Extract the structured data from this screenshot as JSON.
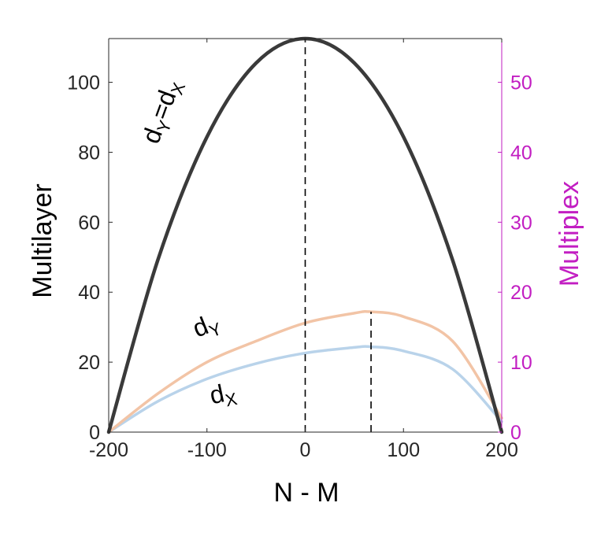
{
  "chart_data": {
    "type": "line",
    "xlabel": "N - M",
    "ylabel_left": "Multilayer",
    "ylabel_right": "Multiplex",
    "xlim": [
      -200,
      200
    ],
    "ylim_left": [
      0,
      112.5
    ],
    "ylim_right": [
      0,
      56.25
    ],
    "xticks": [
      "-200",
      "-100",
      "0",
      "100",
      "200"
    ],
    "yticks_left": [
      "0",
      "20",
      "40",
      "60",
      "80",
      "100"
    ],
    "yticks_right": [
      "0",
      "10",
      "20",
      "30",
      "40",
      "50"
    ],
    "grid": false,
    "colors": {
      "axis_left": "#262626",
      "axis_right": "#c21ec2",
      "dY_eq_dX": "#3a3a3a",
      "dY": "#f2c4a6",
      "dX": "#b9d3ea",
      "marker": "#000000"
    },
    "series": [
      {
        "name": "dY=dX",
        "axis": "left",
        "x": [
          -200,
          -150,
          -100,
          -50,
          0,
          50,
          100,
          150,
          200
        ],
        "y": [
          0,
          49.2,
          84.4,
          105.5,
          112.5,
          105.5,
          84.4,
          49.2,
          0
        ]
      },
      {
        "name": "dY",
        "axis": "right",
        "x": [
          -200,
          -150,
          -100,
          -50,
          0,
          50,
          67,
          100,
          150,
          200
        ],
        "y": [
          0,
          5.5,
          10.0,
          13.0,
          15.6,
          17.0,
          17.2,
          16.5,
          13.0,
          2.0
        ]
      },
      {
        "name": "dX",
        "axis": "right",
        "x": [
          -200,
          -150,
          -100,
          -50,
          0,
          50,
          67,
          100,
          150,
          200
        ],
        "y": [
          0,
          4.4,
          7.6,
          9.8,
          11.3,
          12.1,
          12.2,
          11.6,
          9.0,
          1.5
        ]
      }
    ],
    "vlines": [
      {
        "x": 0,
        "axis": "left",
        "y": 112.5
      },
      {
        "x": 67,
        "axis": "right",
        "y": 17.2
      }
    ],
    "annotations": {
      "dYdX": {
        "main1": "d",
        "sub1": "Y",
        "eq": "=d",
        "sub2": "X",
        "x": -150,
        "y": 82,
        "axis": "left",
        "rotate": -70
      },
      "dY": {
        "main": "d",
        "sub": "Y",
        "x": -110,
        "y": 27,
        "axis": "left",
        "rotate": -22
      },
      "dX": {
        "main": "d",
        "sub": "X",
        "x": -95,
        "y": 8,
        "axis": "left",
        "rotate": -12
      }
    }
  }
}
